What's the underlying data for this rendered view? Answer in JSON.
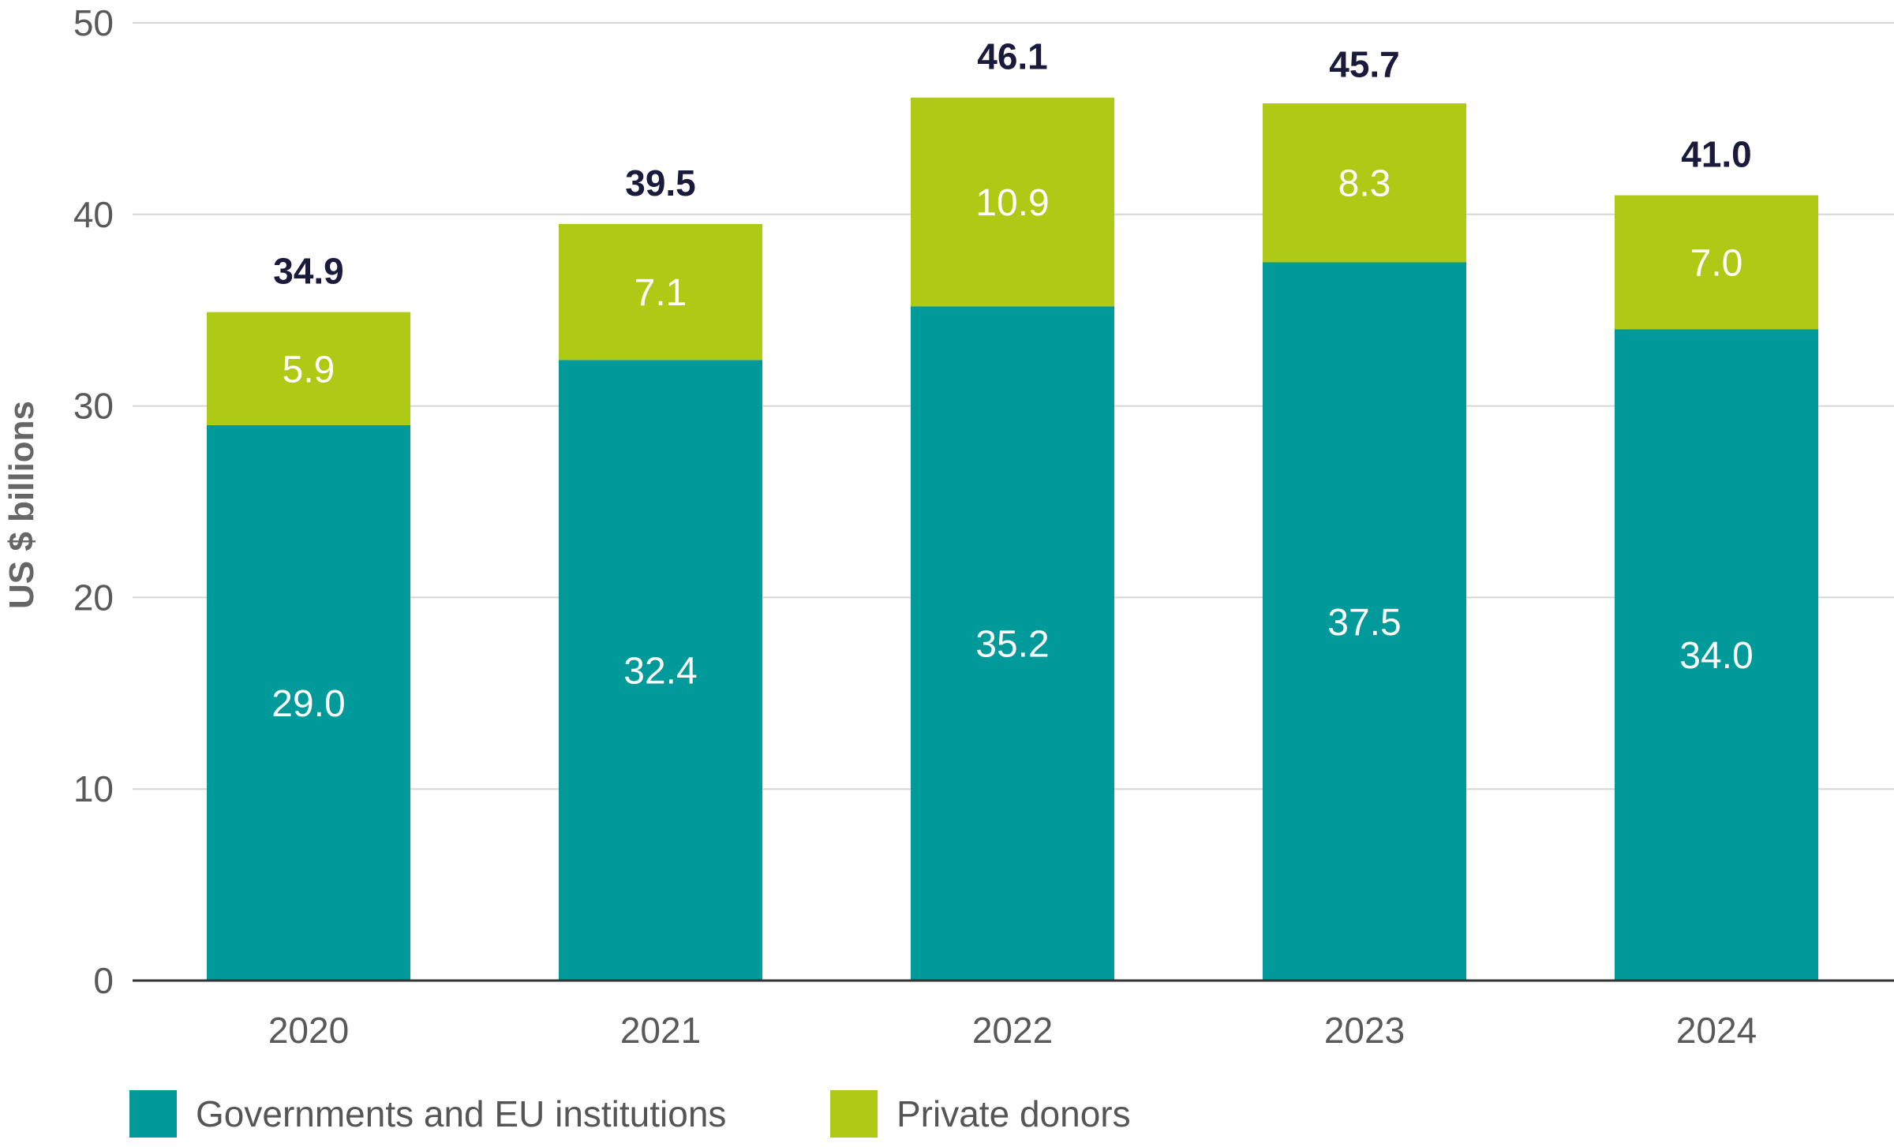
{
  "chart_data": {
    "type": "bar",
    "stacked": true,
    "categories": [
      "2020",
      "2021",
      "2022",
      "2023",
      "2024"
    ],
    "series": [
      {
        "name": "Governments and EU institutions",
        "color": "#009a9a",
        "values": [
          29.0,
          32.4,
          35.2,
          37.5,
          34.0
        ]
      },
      {
        "name": "Private donors",
        "color": "#afca14",
        "values": [
          5.9,
          7.1,
          10.9,
          8.3,
          7.0
        ]
      }
    ],
    "totals": [
      34.9,
      39.5,
      46.1,
      45.7,
      41.0
    ],
    "segment_labels": [
      [
        "29.0",
        "32.4",
        "35.2",
        "37.5",
        "34.0"
      ],
      [
        "5.9",
        "7.1",
        "10.9",
        "8.3",
        "7.0"
      ]
    ],
    "total_labels": [
      "34.9",
      "39.5",
      "46.1",
      "45.7",
      "41.0"
    ],
    "ylabel": "US $ billions",
    "xlabel": "",
    "ylim": [
      0,
      50
    ],
    "yticks": [
      "0",
      "10",
      "20",
      "30",
      "40",
      "50"
    ],
    "grid": true,
    "legend_position": "bottom-left"
  }
}
